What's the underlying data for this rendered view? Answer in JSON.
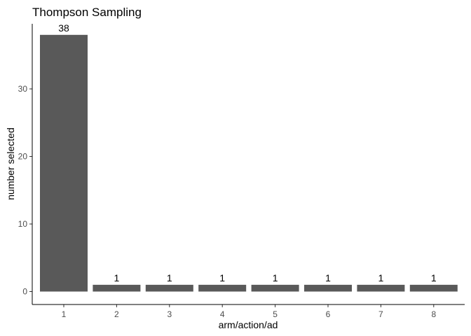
{
  "chart_data": {
    "type": "bar",
    "title": "Thompson Sampling",
    "xlabel": "arm/action/ad",
    "ylabel": "number selected",
    "categories": [
      "1",
      "2",
      "3",
      "4",
      "5",
      "6",
      "7",
      "8"
    ],
    "values": [
      38,
      1,
      1,
      1,
      1,
      1,
      1,
      1
    ],
    "data_labels": [
      "38",
      "1",
      "1",
      "1",
      "1",
      "1",
      "1",
      "1"
    ],
    "ylim": [
      0,
      40
    ],
    "y_ticks": [
      0,
      10,
      20,
      30
    ],
    "grid": false,
    "legend": "none",
    "bar_color": "#595959"
  }
}
